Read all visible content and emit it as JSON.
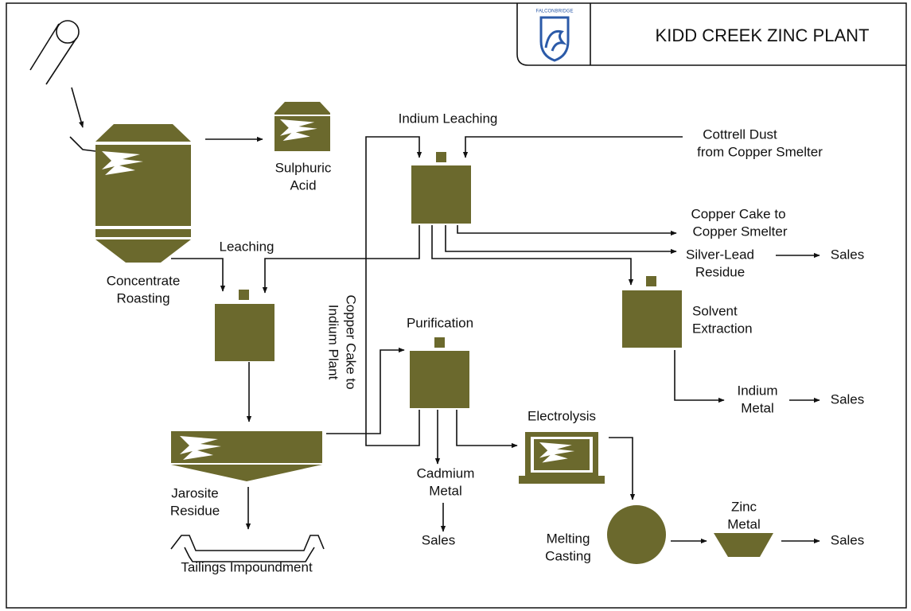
{
  "header": {
    "logo": "FALCONBRIDGE",
    "title": "KIDD CREEK ZINC PLANT"
  },
  "labels": [
    [
      "Indium Leaching"
    ],
    [
      "Cottrell Dust",
      "from Copper Smelter"
    ],
    [
      "Sulphuric",
      "Acid"
    ],
    [
      "Copper Cake to",
      "Copper Smelter"
    ],
    [
      "Leaching"
    ],
    [
      "Silver-Lead",
      "Residue"
    ],
    [
      "Sales"
    ],
    [
      "Concentrate",
      "Roasting"
    ],
    [
      "Copper Cake to",
      "Indium Plant"
    ],
    [
      "Purification"
    ],
    [
      "Solvent",
      "Extraction"
    ],
    [
      "Indium",
      "Metal"
    ],
    [
      "Sales"
    ],
    [
      "Electrolysis"
    ],
    [
      "Cadmium",
      "Metal"
    ],
    [
      "Jarosite",
      "Residue"
    ],
    [
      "Sales"
    ],
    [
      "Melting",
      "Casting"
    ],
    [
      "Zinc",
      "Metal"
    ],
    [
      "Sales"
    ],
    [
      "Tailings Impoundment"
    ]
  ]
}
